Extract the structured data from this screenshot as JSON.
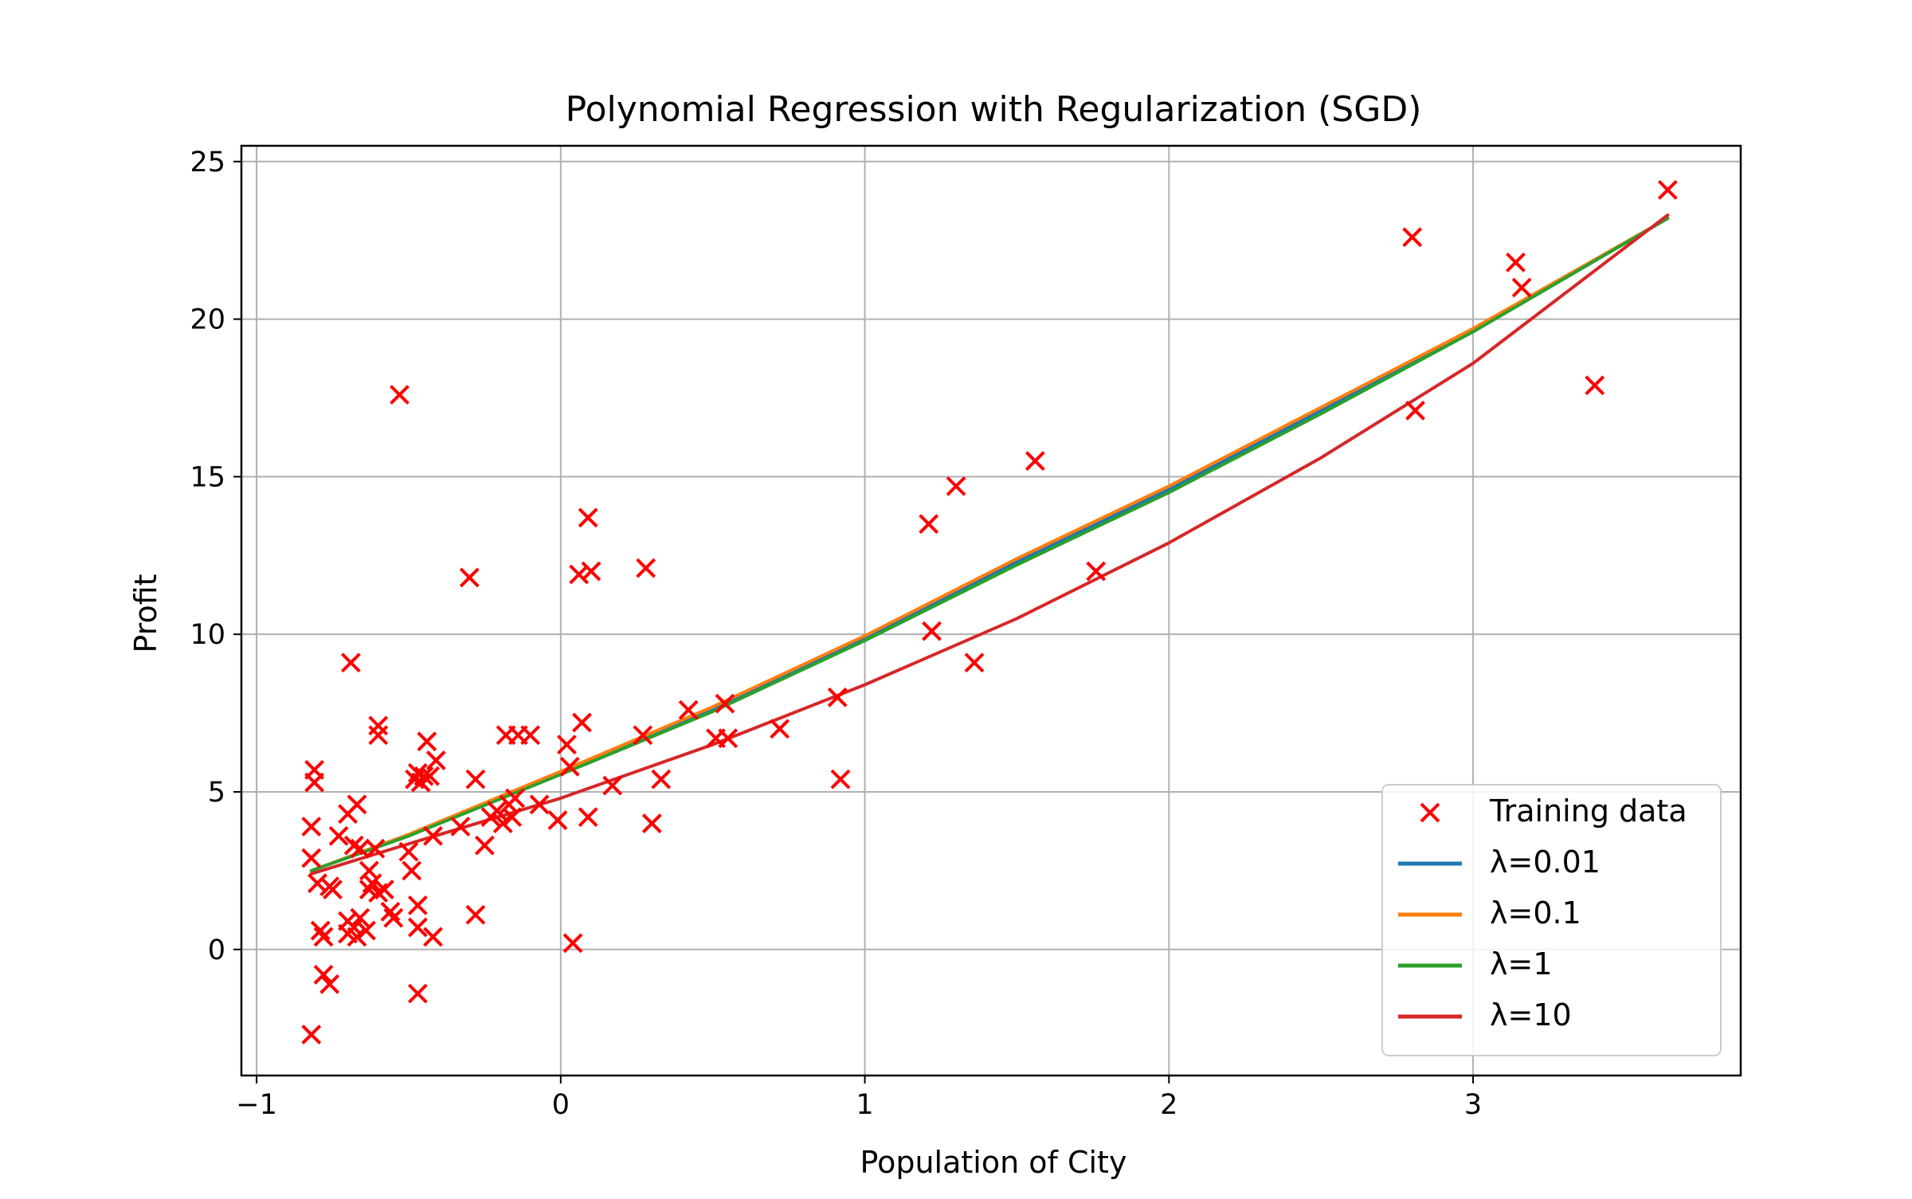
{
  "chart_data": {
    "type": "scatter",
    "title": "Polynomial Regression with Regularization (SGD)",
    "xlabel": "Population of City",
    "ylabel": "Profit",
    "xlim": [
      -1.05,
      3.88
    ],
    "ylim": [
      -4.0,
      25.5
    ],
    "xticks": [
      -1,
      0,
      1,
      2,
      3
    ],
    "yticks": [
      0,
      5,
      10,
      15,
      20,
      25
    ],
    "xtick_labels": [
      "−1",
      "0",
      "1",
      "2",
      "3"
    ],
    "ytick_labels": [
      "0",
      "5",
      "10",
      "15",
      "20",
      "25"
    ],
    "grid": true,
    "legend_position": "lower-right",
    "scatter": {
      "name": "Training data",
      "color": "#ff0000",
      "marker": "x",
      "points": [
        [
          -0.81,
          5.7
        ],
        [
          -0.81,
          5.3
        ],
        [
          -0.82,
          3.9
        ],
        [
          -0.82,
          2.9
        ],
        [
          -0.8,
          2.1
        ],
        [
          -0.79,
          0.6
        ],
        [
          -0.78,
          0.4
        ],
        [
          -0.78,
          -0.8
        ],
        [
          -0.76,
          -1.1
        ],
        [
          -0.82,
          -2.7
        ],
        [
          -0.76,
          2.0
        ],
        [
          -0.75,
          1.9
        ],
        [
          -0.73,
          3.6
        ],
        [
          -0.7,
          4.3
        ],
        [
          -0.67,
          4.6
        ],
        [
          -0.69,
          9.1
        ],
        [
          -0.68,
          3.3
        ],
        [
          -0.66,
          3.2
        ],
        [
          -0.7,
          0.9
        ],
        [
          -0.7,
          0.5
        ],
        [
          -0.68,
          0.7
        ],
        [
          -0.67,
          0.4
        ],
        [
          -0.66,
          1.0
        ],
        [
          -0.64,
          0.6
        ],
        [
          -0.63,
          1.9
        ],
        [
          -0.62,
          2.1
        ],
        [
          -0.63,
          2.5
        ],
        [
          -0.61,
          3.2
        ],
        [
          -0.6,
          1.8
        ],
        [
          -0.58,
          1.9
        ],
        [
          -0.6,
          6.8
        ],
        [
          -0.6,
          7.1
        ],
        [
          -0.56,
          1.2
        ],
        [
          -0.55,
          1.0
        ],
        [
          -0.53,
          17.6
        ],
        [
          -0.5,
          3.1
        ],
        [
          -0.49,
          2.5
        ],
        [
          -0.48,
          5.4
        ],
        [
          -0.47,
          5.6
        ],
        [
          -0.46,
          5.3
        ],
        [
          -0.45,
          5.5
        ],
        [
          -0.47,
          1.4
        ],
        [
          -0.47,
          0.7
        ],
        [
          -0.47,
          -1.4
        ],
        [
          -0.44,
          6.6
        ],
        [
          -0.43,
          5.5
        ],
        [
          -0.41,
          6.0
        ],
        [
          -0.42,
          3.6
        ],
        [
          -0.42,
          0.4
        ],
        [
          -0.33,
          3.9
        ],
        [
          -0.3,
          11.8
        ],
        [
          -0.28,
          5.4
        ],
        [
          -0.28,
          1.1
        ],
        [
          -0.25,
          3.3
        ],
        [
          -0.23,
          4.2
        ],
        [
          -0.21,
          4.4
        ],
        [
          -0.19,
          4.0
        ],
        [
          -0.18,
          6.8
        ],
        [
          -0.17,
          4.6
        ],
        [
          -0.16,
          4.2
        ],
        [
          -0.15,
          4.8
        ],
        [
          -0.14,
          6.8
        ],
        [
          -0.1,
          6.8
        ],
        [
          -0.07,
          4.6
        ],
        [
          -0.01,
          4.1
        ],
        [
          0.02,
          6.5
        ],
        [
          0.03,
          5.8
        ],
        [
          0.04,
          0.2
        ],
        [
          0.06,
          11.9
        ],
        [
          0.07,
          7.2
        ],
        [
          0.09,
          13.7
        ],
        [
          0.1,
          12.0
        ],
        [
          0.09,
          4.2
        ],
        [
          0.17,
          5.2
        ],
        [
          0.27,
          6.8
        ],
        [
          0.28,
          12.1
        ],
        [
          0.3,
          4.0
        ],
        [
          0.33,
          5.4
        ],
        [
          0.42,
          7.6
        ],
        [
          0.51,
          6.7
        ],
        [
          0.54,
          7.8
        ],
        [
          0.55,
          6.7
        ],
        [
          0.72,
          7.0
        ],
        [
          0.91,
          8.0
        ],
        [
          0.92,
          5.4
        ],
        [
          1.21,
          13.5
        ],
        [
          1.22,
          10.1
        ],
        [
          1.3,
          14.7
        ],
        [
          1.36,
          9.1
        ],
        [
          1.56,
          15.5
        ],
        [
          1.76,
          12.0
        ],
        [
          2.8,
          22.6
        ],
        [
          2.81,
          17.1
        ],
        [
          3.14,
          21.8
        ],
        [
          3.16,
          21.0
        ],
        [
          3.4,
          17.9
        ],
        [
          3.64,
          24.1
        ]
      ]
    },
    "series": [
      {
        "name": "λ=0.01",
        "color": "#1f77b4",
        "x": [
          -0.82,
          -0.5,
          0.0,
          0.5,
          1.0,
          1.5,
          2.0,
          2.5,
          3.0,
          3.64
        ],
        "y": [
          2.5,
          3.6,
          5.6,
          7.6,
          9.9,
          12.3,
          14.6,
          17.1,
          19.6,
          23.2
        ]
      },
      {
        "name": "λ=0.1",
        "color": "#ff7f0e",
        "x": [
          -0.82,
          -0.5,
          0.0,
          0.5,
          1.0,
          1.5,
          2.0,
          2.5,
          3.0,
          3.64
        ],
        "y": [
          2.5,
          3.65,
          5.65,
          7.7,
          9.95,
          12.4,
          14.7,
          17.2,
          19.7,
          23.2
        ]
      },
      {
        "name": "λ=1",
        "color": "#2ca02c",
        "x": [
          -0.82,
          -0.5,
          0.0,
          0.5,
          1.0,
          1.5,
          2.0,
          2.5,
          3.0,
          3.64
        ],
        "y": [
          2.5,
          3.6,
          5.55,
          7.55,
          9.8,
          12.2,
          14.5,
          17.0,
          19.6,
          23.2
        ]
      },
      {
        "name": "λ=10",
        "color": "#d62728",
        "x": [
          -0.82,
          -0.5,
          0.0,
          0.5,
          1.0,
          1.5,
          2.0,
          2.5,
          3.0,
          3.64
        ],
        "y": [
          2.4,
          3.35,
          4.8,
          6.5,
          8.4,
          10.5,
          12.9,
          15.6,
          18.6,
          23.3
        ]
      }
    ]
  }
}
